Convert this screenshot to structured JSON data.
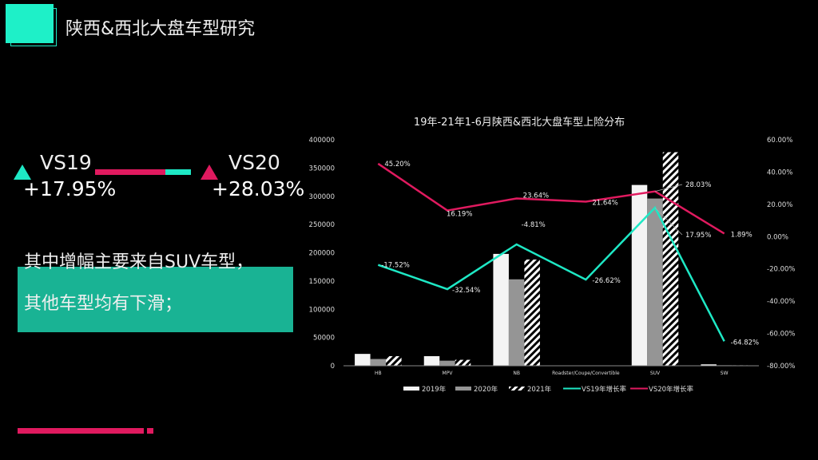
{
  "header": {
    "title": "陕西&西北大盘车型研究"
  },
  "comparison": {
    "vs19": {
      "label": "VS19",
      "value": "+17.95%",
      "color": "#1ee8c5"
    },
    "vs20": {
      "label": "VS20",
      "value": "+28.03%",
      "color": "#e01a5f"
    }
  },
  "note": {
    "line1": "其中增幅主要来自SUV车型，",
    "line2": "其他车型均有下滑；"
  },
  "colors": {
    "accent_teal": "#1ef0c8",
    "accent_pink": "#e01a5f",
    "box_green": "#19b394"
  },
  "chart_data": {
    "type": "bar",
    "title": "19年-21年1-6月陕西&西北大盘车型上险分布",
    "categories": [
      "HB",
      "MPV",
      "NB",
      "Roadster/Coupe/Convertible",
      "SUV",
      "SW"
    ],
    "series": [
      {
        "name": "2019年",
        "type": "bar",
        "axis": "left",
        "values": [
          21000,
          17000,
          198000,
          500,
          320000,
          2500
        ]
      },
      {
        "name": "2020年",
        "type": "bar",
        "axis": "left",
        "values": [
          12000,
          9000,
          153000,
          400,
          296000,
          900
        ]
      },
      {
        "name": "2021年",
        "type": "bar",
        "axis": "left",
        "values": [
          17000,
          10500,
          188000,
          300,
          378000,
          800
        ]
      },
      {
        "name": "VS19年增长率",
        "type": "line",
        "axis": "right",
        "color": "#1ee8c5",
        "values": [
          -17.52,
          -32.54,
          -4.81,
          -26.62,
          17.95,
          -64.82
        ],
        "labels": [
          "-17.52%",
          "-32.54%",
          "-4.81%",
          "-26.62%",
          "17.95%",
          "-64.82%"
        ]
      },
      {
        "name": "VS20年增长率",
        "type": "line",
        "axis": "right",
        "color": "#e01a5f",
        "values": [
          45.2,
          16.19,
          23.64,
          21.64,
          28.03,
          1.89
        ],
        "labels": [
          "45.20%",
          "16.19%",
          "23.64%",
          "21.64%",
          "28.03%",
          "1.89%"
        ]
      }
    ],
    "y_left": {
      "ticks": [
        "400000",
        "350000",
        "300000",
        "250000",
        "200000",
        "150000",
        "100000",
        "50000",
        "0"
      ],
      "range": [
        0,
        400000
      ]
    },
    "y_right": {
      "ticks": [
        "60.00%",
        "40.00%",
        "20.00%",
        "0.00%",
        "-20.00%",
        "-40.00%",
        "-60.00%",
        "-80.00%"
      ],
      "range": [
        -80,
        60
      ]
    },
    "legend": [
      "2019年",
      "2020年",
      "2021年",
      "VS19年增长率",
      "VS20年增长率"
    ],
    "legend_position": "bottom",
    "grid": false
  }
}
